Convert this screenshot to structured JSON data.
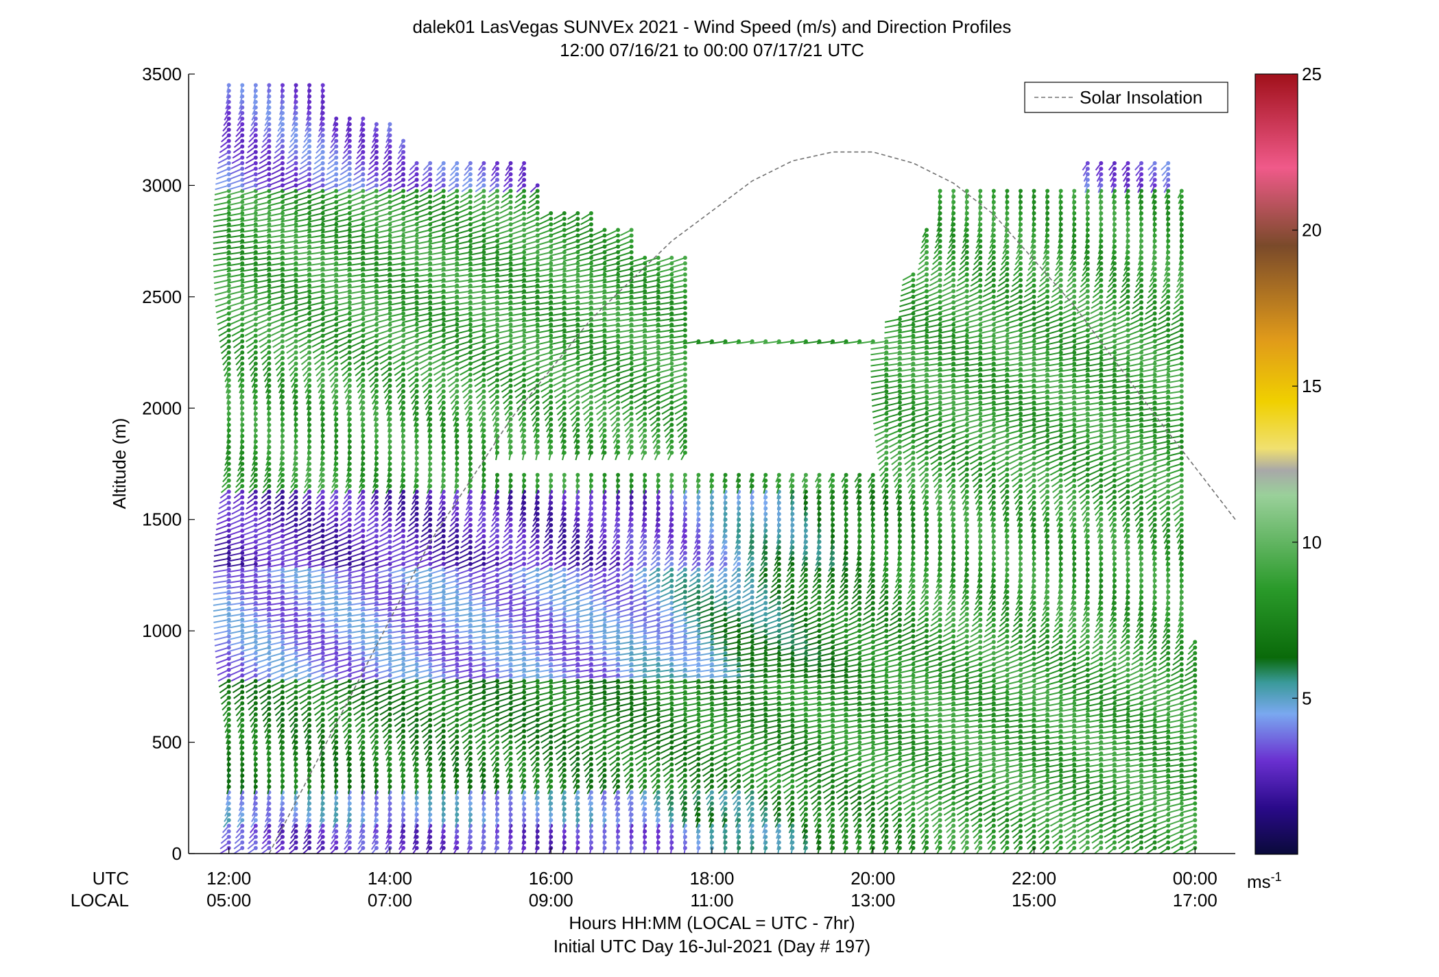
{
  "chart_data": {
    "type": "wind-barb-profile",
    "title": "dalek01 LasVegas SUNVEx 2021 - Wind Speed (m/s) and Direction Profiles",
    "subtitle": "12:00 07/16/21 to 00:00 07/17/21  UTC",
    "ylabel": "Altitude (m)",
    "xlabel": "Hours HH:MM  (LOCAL = UTC - 7hr)",
    "xlabel2": "Initial UTC Day 16-Jul-2021 (Day # 197)",
    "utc_row_label": "UTC",
    "local_row_label": "LOCAL",
    "ylim": [
      0,
      3500
    ],
    "y_ticks": [
      "0",
      "500",
      "1000",
      "1500",
      "2000",
      "2500",
      "3000",
      "3500"
    ],
    "x_range_hours": [
      11.5,
      24.5
    ],
    "x_tick_hours": [
      12,
      14,
      16,
      18,
      20,
      22,
      24
    ],
    "x_ticks_utc": [
      "12:00",
      "14:00",
      "16:00",
      "18:00",
      "20:00",
      "22:00",
      "00:00"
    ],
    "x_ticks_local": [
      "05:00",
      "07:00",
      "09:00",
      "11:00",
      "13:00",
      "15:00",
      "17:00"
    ],
    "colorbar": {
      "label": "ms",
      "label_sup": "-1",
      "range": [
        0,
        25
      ],
      "ticks": [
        "5",
        "10",
        "15",
        "20",
        "25"
      ],
      "stops": [
        {
          "v": 0,
          "c": "#0a0a3a"
        },
        {
          "v": 1.5,
          "c": "#2a0a8a"
        },
        {
          "v": 3,
          "c": "#6a30d0"
        },
        {
          "v": 4.5,
          "c": "#7aa8f0"
        },
        {
          "v": 5.5,
          "c": "#3a9a9a"
        },
        {
          "v": 6.3,
          "c": "#0a6a0a"
        },
        {
          "v": 8.5,
          "c": "#2a9a2a"
        },
        {
          "v": 11.5,
          "c": "#9ad09a"
        },
        {
          "v": 12.3,
          "c": "#a8a8a8"
        },
        {
          "v": 13,
          "c": "#f0e070"
        },
        {
          "v": 14.5,
          "c": "#f0d000"
        },
        {
          "v": 16.5,
          "c": "#e09a1a"
        },
        {
          "v": 19.5,
          "c": "#7a4a2a"
        },
        {
          "v": 22,
          "c": "#f05a8a"
        },
        {
          "v": 25,
          "c": "#a0101a"
        }
      ]
    },
    "legend": {
      "label": "Solar Insolation",
      "location": "top-right",
      "line_style": "dashed",
      "color": "#707070"
    },
    "solar_insolation_curve": {
      "x_hours": [
        12.5,
        13.5,
        14.5,
        15.5,
        16.5,
        17.5,
        18.5,
        19.0,
        19.5,
        20.0,
        20.5,
        21.0,
        21.5,
        22.5,
        23.5,
        24.5
      ],
      "altitude_m": [
        0,
        700,
        1400,
        1950,
        2400,
        2750,
        3020,
        3110,
        3150,
        3150,
        3100,
        3010,
        2870,
        2460,
        1970,
        1500
      ]
    },
    "profiles": {
      "x_hours_start": 12.0,
      "interval_min": 10,
      "columns": 73,
      "level_spacing_m": 25,
      "max_altitude_m": [
        3460,
        3460,
        3460,
        3460,
        3460,
        3460,
        3460,
        3460,
        3300,
        3300,
        3300,
        3280,
        3280,
        3200,
        3120,
        3120,
        3120,
        3120,
        3120,
        3120,
        3120,
        3120,
        3110,
        3000,
        2880,
        2880,
        2880,
        2880,
        2800,
        2800,
        2800,
        2690,
        2690,
        2690,
        2690,
        2300,
        2300,
        2300,
        2300,
        2300,
        2300,
        2300,
        2300,
        2300,
        2300,
        2300,
        2300,
        2300,
        2300,
        2300,
        2400,
        2600,
        2800,
        2990,
        2990,
        2990,
        2990,
        2990,
        2990,
        2990,
        2990,
        2990,
        2990,
        2990,
        3120,
        3120,
        3120,
        3120,
        3120,
        3120,
        3120,
        2990,
        950
      ],
      "gap_ranges_m": [
        [
          1750,
          2300
        ],
        [
          1700,
          2700
        ]
      ],
      "speed_bands_ms": [
        {
          "from_m": 0,
          "to_m": 150,
          "speed": 3.0
        },
        {
          "from_m": 150,
          "to_m": 300,
          "speed": 4.5
        },
        {
          "from_m": 300,
          "to_m": 800,
          "speed": 7.0
        },
        {
          "from_m": 800,
          "to_m": 1300,
          "speed": 4.0
        },
        {
          "from_m": 1300,
          "to_m": 1650,
          "speed": 2.5
        },
        {
          "from_m": 1650,
          "to_m": 3000,
          "speed": 8.5
        },
        {
          "from_m": 3000,
          "to_m": 3500,
          "speed": 3.5
        }
      ]
    }
  }
}
